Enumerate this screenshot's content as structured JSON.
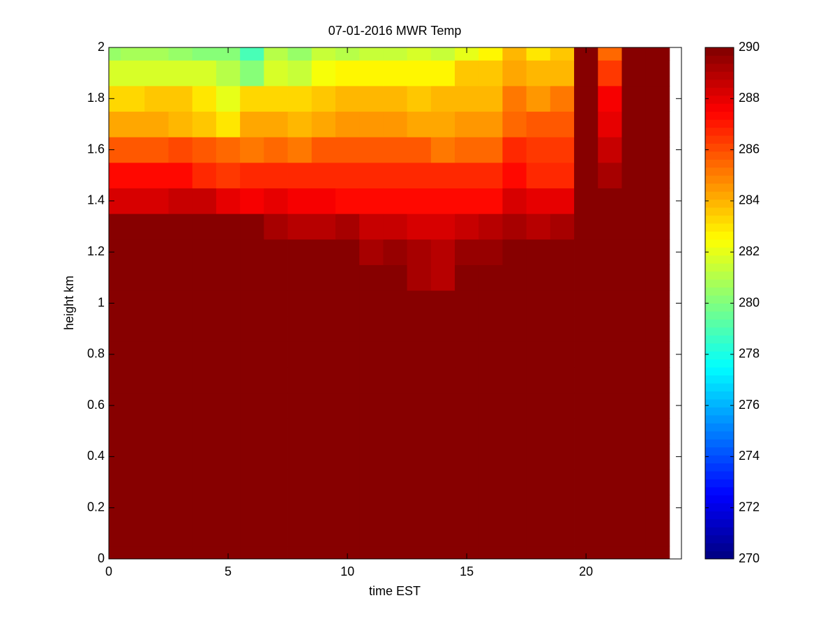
{
  "chart_data": {
    "type": "heatmap",
    "title": "07-01-2016 MWR Temp",
    "xlabel": "time EST",
    "ylabel": "height km",
    "colormap": "jet",
    "x": [
      0,
      1,
      2,
      3,
      4,
      5,
      6,
      7,
      8,
      9,
      10,
      11,
      12,
      13,
      14,
      15,
      16,
      17,
      18,
      19,
      20,
      21,
      22,
      23
    ],
    "y": [
      0,
      0.1,
      0.2,
      0.3,
      0.4,
      0.5,
      0.6,
      0.7,
      0.8,
      0.9,
      1.0,
      1.1,
      1.2,
      1.3,
      1.4,
      1.5,
      1.6,
      1.7,
      1.8,
      1.9,
      2.0
    ],
    "z": [
      [
        291,
        291,
        291,
        291,
        291,
        291,
        291,
        291,
        291,
        291,
        291,
        291,
        291,
        291,
        291,
        291,
        291,
        291,
        291,
        291,
        291,
        291,
        291,
        291
      ],
      [
        291,
        291,
        291,
        291,
        291,
        291,
        291,
        291,
        291,
        291,
        291,
        291,
        291,
        291,
        291,
        291,
        291,
        291,
        291,
        291,
        291,
        291,
        291,
        291
      ],
      [
        291,
        291,
        291,
        291,
        291,
        291,
        291,
        291,
        291,
        291,
        291,
        291,
        291,
        291,
        291,
        291,
        291,
        291,
        291,
        291,
        291,
        291,
        291,
        291
      ],
      [
        291,
        291,
        291,
        291,
        291,
        291,
        291,
        291,
        291,
        291,
        291,
        291,
        291,
        291,
        291,
        291,
        291,
        291,
        291,
        291,
        291,
        291,
        291,
        291
      ],
      [
        291,
        291,
        291,
        291,
        291,
        291,
        291,
        291,
        291,
        291,
        291,
        291,
        291,
        291,
        291,
        291,
        291,
        291,
        291,
        291,
        291,
        291,
        291,
        291
      ],
      [
        291,
        291,
        291,
        291,
        291,
        291,
        291,
        291,
        291,
        291,
        291,
        291,
        291,
        291,
        291,
        291,
        291,
        291,
        291,
        291,
        291,
        291,
        291,
        291
      ],
      [
        291,
        291,
        291,
        291,
        291,
        291,
        291,
        291,
        291,
        291,
        291,
        291,
        291,
        291,
        291,
        291,
        291,
        291,
        291,
        291,
        291,
        291,
        291,
        291
      ],
      [
        291,
        291,
        291,
        291,
        291,
        291,
        291,
        291,
        291,
        291,
        291,
        291,
        291,
        291,
        291,
        291,
        291,
        291,
        291,
        291,
        291,
        291,
        291,
        291
      ],
      [
        291,
        291,
        291,
        291,
        291,
        291,
        291,
        291,
        291,
        291,
        291,
        291,
        291,
        291,
        291,
        291,
        291,
        291,
        291,
        291,
        291,
        291,
        291,
        291
      ],
      [
        291,
        291,
        291,
        291,
        291,
        291,
        291,
        291,
        291,
        291,
        291,
        291,
        291,
        291,
        291,
        291,
        291,
        291,
        291,
        291,
        291,
        291,
        291,
        291
      ],
      [
        291,
        291,
        291,
        291,
        291,
        291,
        291,
        291,
        291,
        291,
        291,
        291,
        291,
        291,
        291,
        291,
        291,
        291,
        291,
        291,
        291,
        291,
        291,
        291
      ],
      [
        291,
        291,
        291,
        291,
        291,
        291,
        291,
        291,
        291,
        291,
        291,
        291,
        291,
        289.3,
        289,
        291,
        291,
        291,
        291,
        291,
        291,
        291,
        291,
        291
      ],
      [
        291,
        291,
        291,
        291,
        291,
        291,
        291,
        291,
        291,
        289.7,
        289.7,
        289.2,
        289.5,
        289.2,
        288.8,
        289.5,
        289.5,
        291,
        291,
        291,
        291,
        291,
        291,
        291
      ],
      [
        291,
        291,
        291,
        291,
        291,
        289.7,
        289.7,
        289.3,
        289,
        289,
        289.3,
        288.7,
        288.7,
        288.3,
        288.3,
        288.7,
        289,
        289.3,
        289,
        289.3,
        291,
        291,
        291,
        291
      ],
      [
        288.3,
        288.2,
        288.2,
        288.5,
        288.5,
        288,
        287.8,
        288,
        287.6,
        287.6,
        287.3,
        287.3,
        287.4,
        287.4,
        287.2,
        287.2,
        287.2,
        288.3,
        288,
        288,
        291,
        291,
        291,
        291
      ],
      [
        287.2,
        287.2,
        287.2,
        287.2,
        286.8,
        286.3,
        286.7,
        286.6,
        286.6,
        286.6,
        286.6,
        286.6,
        286.6,
        286.6,
        286.6,
        286.6,
        286.6,
        287.4,
        286.8,
        286.8,
        291,
        289.2,
        291,
        291
      ],
      [
        285.8,
        285.8,
        285.8,
        286.2,
        285.8,
        285.6,
        285.3,
        285.6,
        285.3,
        285.8,
        285.8,
        285.8,
        285.8,
        285.8,
        285.3,
        285.6,
        285.6,
        286.7,
        286.3,
        286.3,
        291,
        288.6,
        291,
        291
      ],
      [
        284.3,
        284.3,
        284.3,
        284,
        283.7,
        283,
        284.2,
        284.2,
        284,
        284.3,
        284.5,
        284.5,
        284.5,
        284.2,
        284.2,
        284.5,
        284.5,
        285.6,
        285.8,
        285.8,
        291,
        288,
        291,
        291
      ],
      [
        283.3,
        283.3,
        283.7,
        283.7,
        283,
        282,
        283.2,
        283.2,
        283.3,
        283.5,
        283.8,
        283.8,
        283.8,
        283.6,
        283.8,
        283.8,
        283.8,
        285.3,
        284.5,
        285,
        291,
        287.6,
        291,
        291
      ],
      [
        281.7,
        281.7,
        281.7,
        281.7,
        281.7,
        281,
        280,
        281.8,
        281.3,
        282.3,
        282.8,
        282.5,
        282.5,
        282.5,
        282.8,
        283.5,
        283.7,
        284.2,
        283.8,
        284,
        291,
        286.3,
        291,
        291
      ],
      [
        280.5,
        280.7,
        280.7,
        280.5,
        280.3,
        280,
        279,
        281,
        280.5,
        281.3,
        281,
        281.5,
        281.5,
        281.7,
        281.5,
        282,
        282.5,
        284,
        283,
        283.5,
        291,
        285.5,
        291,
        291
      ]
    ],
    "xlim": [
      0,
      24
    ],
    "ylim": [
      0,
      2
    ],
    "xticks": [
      0,
      5,
      10,
      15,
      20
    ],
    "yticks": [
      0,
      0.2,
      0.4,
      0.6,
      0.8,
      1,
      1.2,
      1.4,
      1.6,
      1.8,
      2
    ],
    "clim": [
      270,
      290
    ],
    "cticks": [
      270,
      272,
      274,
      276,
      278,
      280,
      282,
      284,
      286,
      288,
      290
    ]
  }
}
